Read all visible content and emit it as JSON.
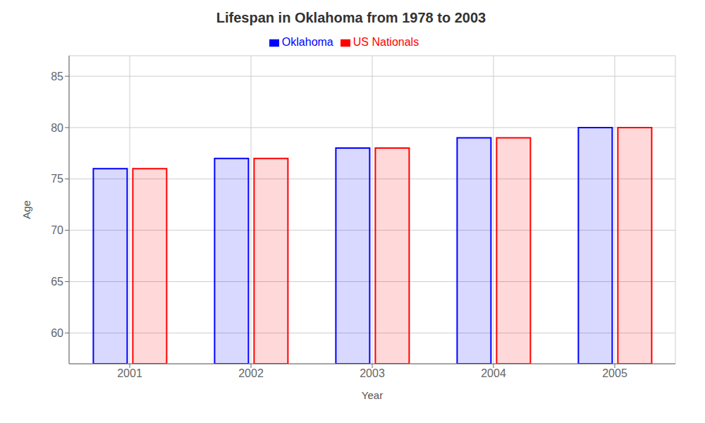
{
  "chart_data": {
    "type": "bar",
    "title": "Lifespan in Oklahoma from 1978 to 2003",
    "xlabel": "Year",
    "ylabel": "Age",
    "categories": [
      "2001",
      "2002",
      "2003",
      "2004",
      "2005"
    ],
    "series": [
      {
        "name": "Oklahoma",
        "color": "#0000ff",
        "values": [
          76,
          77,
          78,
          79,
          80
        ]
      },
      {
        "name": "US Nationals",
        "color": "#ff0000",
        "values": [
          76,
          77,
          78,
          79,
          80
        ]
      }
    ],
    "ylim": [
      57,
      87
    ],
    "yticks": [
      60,
      65,
      70,
      75,
      80,
      85
    ],
    "grid": true,
    "legend": "top"
  }
}
